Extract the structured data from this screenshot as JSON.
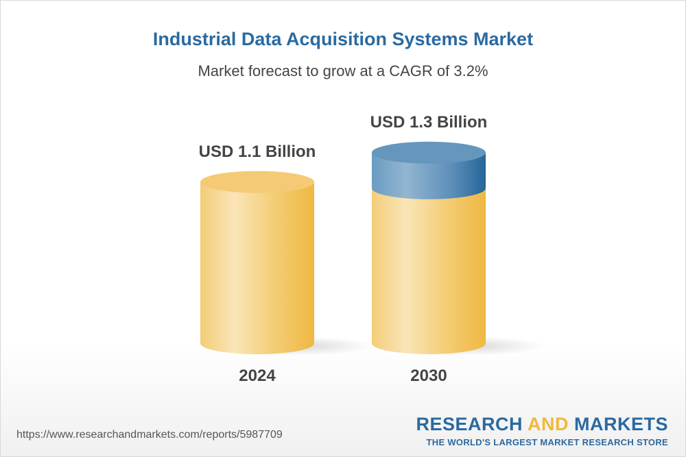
{
  "chart_data": {
    "type": "bar",
    "title": "Industrial Data Acquisition Systems Market",
    "subtitle": "Market forecast to grow at a CAGR of 3.2%",
    "categories": [
      "2024",
      "2030"
    ],
    "values": [
      1.1,
      1.3
    ],
    "unit": "USD Billion",
    "data_labels": [
      "USD 1.1 Billion",
      "USD 1.3 Billion"
    ],
    "colors": {
      "base": "#f2c25a",
      "growth": "#2a6aa0"
    }
  },
  "footer": {
    "url": "https://www.researchandmarkets.com/reports/5987709",
    "logo_part1": "RESEARCH ",
    "logo_part2": "AND",
    "logo_part3": " MARKETS",
    "tagline": "THE WORLD'S LARGEST MARKET RESEARCH STORE"
  }
}
